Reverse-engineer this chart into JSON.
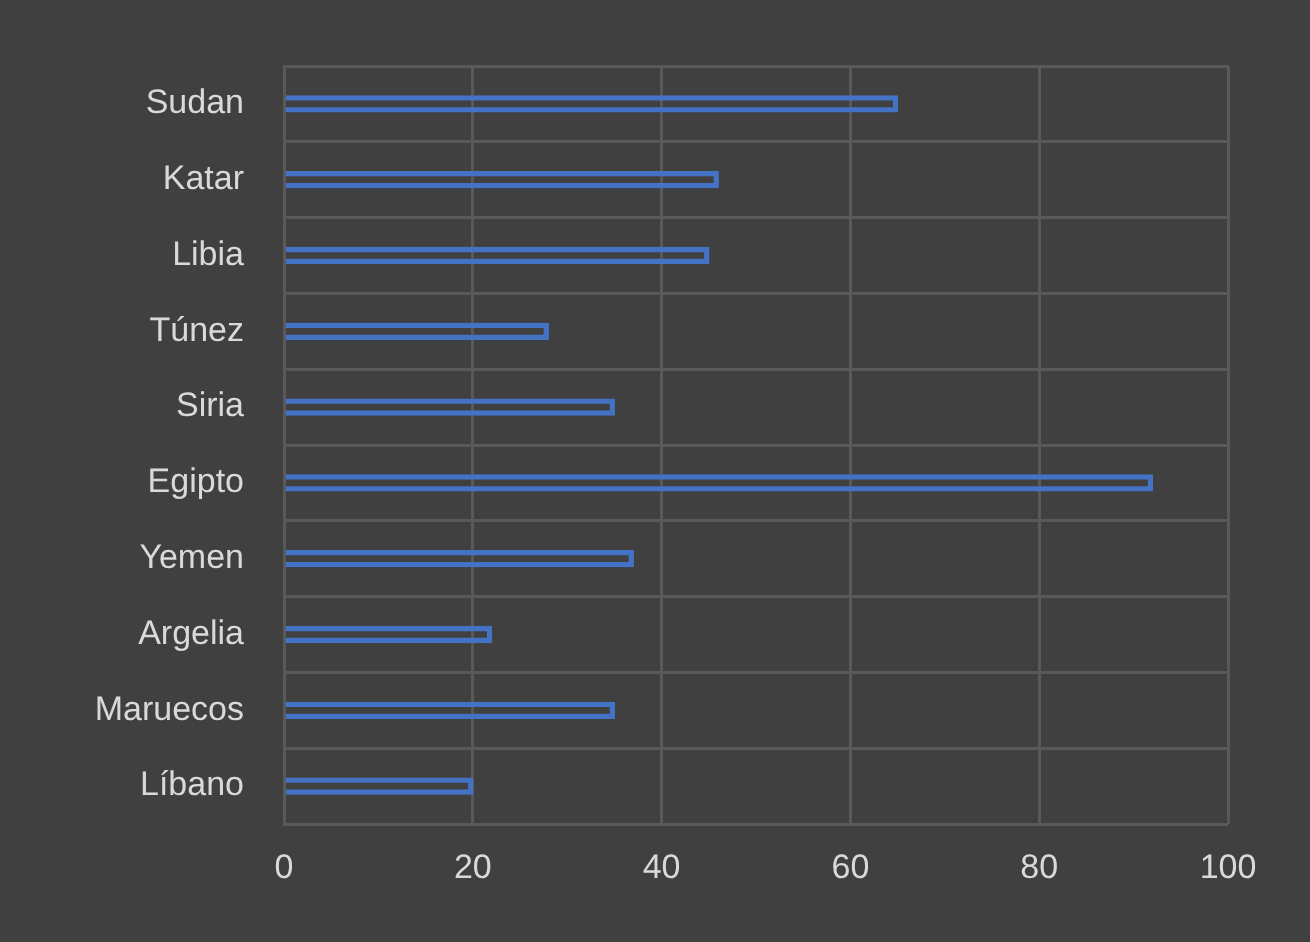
{
  "chart_data": {
    "type": "bar",
    "orientation": "horizontal",
    "categories": [
      "Sudan",
      "Katar",
      "Libia",
      "Túnez",
      "Siria",
      "Egipto",
      "Yemen",
      "Argelia",
      "Maruecos",
      "Líbano"
    ],
    "values": [
      65,
      46,
      45,
      28,
      35,
      92,
      37,
      22,
      35,
      20
    ],
    "color": "#4472c4",
    "xlim": [
      0,
      100
    ],
    "xticks": [
      0,
      20,
      40,
      60,
      80,
      100
    ],
    "grid": true
  }
}
